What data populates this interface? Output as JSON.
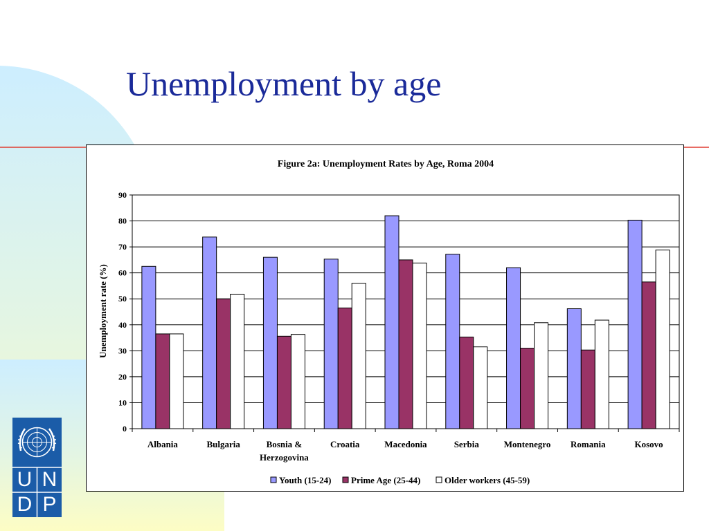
{
  "slide": {
    "title": "Unemployment by age"
  },
  "logo": {
    "letters": [
      "U",
      "N",
      "D",
      "P"
    ]
  },
  "colors": {
    "title": "#1a2a99",
    "accent_line": "#e03c31",
    "youth": "#9999ff",
    "prime": "#993366",
    "older": "#ffffff",
    "logo_blue": "#1b5ca8"
  },
  "chart_data": {
    "type": "bar",
    "title": "Figure 2a: Unemployment Rates by Age, Roma 2004",
    "xlabel": "",
    "ylabel": "Unemployment rate (%)",
    "ylim": [
      0,
      90
    ],
    "yticks": [
      0,
      10,
      20,
      30,
      40,
      50,
      60,
      70,
      80,
      90
    ],
    "grid": true,
    "legend": "bottom",
    "categories": [
      [
        "Albania"
      ],
      [
        "Bulgaria"
      ],
      [
        "Bosnia &",
        "Herzogovina"
      ],
      [
        "Croatia"
      ],
      [
        "Macedonia"
      ],
      [
        "Serbia"
      ],
      [
        "Montenegro"
      ],
      [
        "Romania"
      ],
      [
        "Kosovo"
      ]
    ],
    "series": [
      {
        "name": "Youth (15-24)",
        "color": "#9999ff",
        "values": [
          62.5,
          73.8,
          66.0,
          65.3,
          82.0,
          67.2,
          62.0,
          46.2,
          80.3
        ]
      },
      {
        "name": "Prime Age (25-44)",
        "color": "#993366",
        "values": [
          36.5,
          50.0,
          35.6,
          46.5,
          65.0,
          35.3,
          31.0,
          30.3,
          56.5
        ]
      },
      {
        "name": "Older workers (45-59)",
        "color": "#ffffff",
        "values": [
          36.5,
          51.8,
          36.3,
          56.0,
          63.8,
          31.5,
          40.8,
          41.8,
          68.8
        ]
      }
    ]
  }
}
